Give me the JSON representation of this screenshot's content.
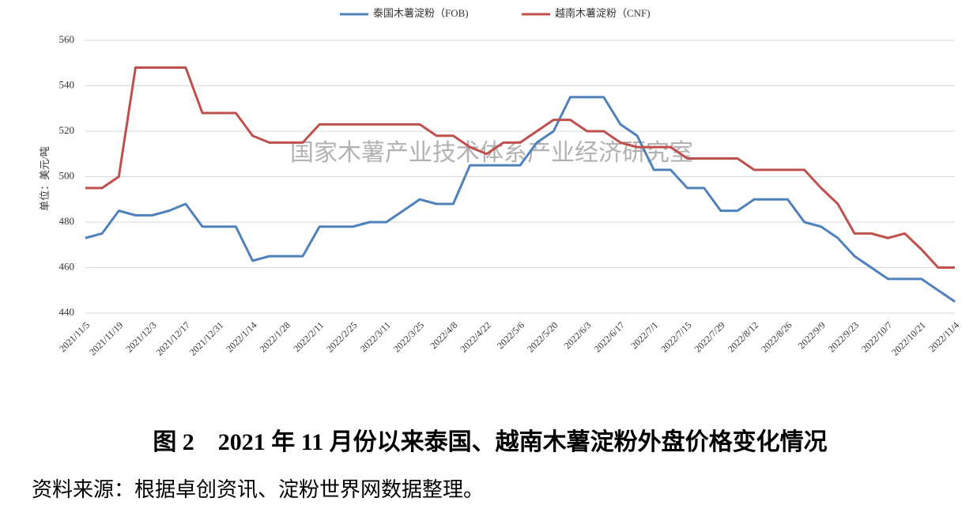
{
  "chart_data": {
    "type": "line",
    "ylabel": "单位：美元/吨",
    "watermark": "国家木薯产业技术体系产业经济研究室",
    "caption": "图 2　2021 年 11 月份以来泰国、越南木薯淀粉外盘价格变化情况",
    "source": "资料来源：根据卓创资讯、淀粉世界网数据整理。",
    "categories": [
      "2021/11/5",
      null,
      "2021/11/19",
      null,
      "2021/12/3",
      null,
      "2021/12/17",
      null,
      "2021/12/31",
      null,
      "2022/1/14",
      null,
      "2022/1/28",
      null,
      "2022/2/11",
      null,
      "2022/2/25",
      null,
      "2022/3/11",
      null,
      "2022/3/25",
      null,
      "2022/4/8",
      null,
      "2022/4/22",
      null,
      "2022/5/6",
      null,
      "2022/5/20",
      null,
      "2022/6/3",
      null,
      "2022/6/17",
      null,
      "2022/7/1",
      null,
      "2022/7/15",
      null,
      "2022/7/29",
      null,
      "2022/8/12",
      null,
      "2022/8/26",
      null,
      "2022/9/9",
      null,
      "2022/9/23",
      null,
      "2022/10/7",
      null,
      "2022/10/21",
      null,
      "2022/11/4"
    ],
    "series": [
      {
        "name": "泰国木薯淀粉（FOB)",
        "color": "#4f81bd",
        "values": [
          473,
          475,
          485,
          483,
          483,
          485,
          488,
          478,
          478,
          478,
          463,
          465,
          465,
          465,
          478,
          478,
          478,
          480,
          480,
          485,
          490,
          488,
          488,
          505,
          505,
          505,
          505,
          515,
          520,
          535,
          535,
          535,
          523,
          518,
          503,
          503,
          495,
          495,
          485,
          485,
          490,
          490,
          490,
          480,
          478,
          473,
          465,
          460,
          455,
          455,
          455,
          450,
          445
        ]
      },
      {
        "name": "越南木薯淀粉（CNF)",
        "color": "#c0504d",
        "values": [
          495,
          495,
          500,
          548,
          548,
          548,
          548,
          528,
          528,
          528,
          518,
          515,
          515,
          515,
          523,
          523,
          523,
          523,
          523,
          523,
          523,
          518,
          518,
          513,
          510,
          515,
          515,
          520,
          525,
          525,
          520,
          520,
          515,
          513,
          513,
          513,
          508,
          508,
          508,
          508,
          503,
          503,
          503,
          503,
          495,
          488,
          475,
          475,
          473,
          475,
          468,
          460,
          460
        ]
      }
    ],
    "ylim": [
      440,
      560
    ],
    "yticks": [
      440,
      460,
      480,
      500,
      520,
      540,
      560
    ],
    "grid": true
  }
}
